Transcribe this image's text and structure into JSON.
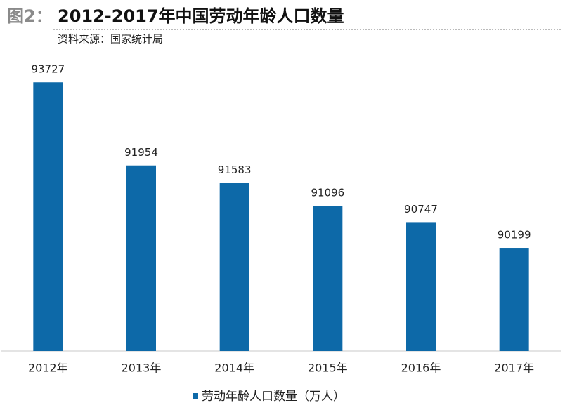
{
  "chart_data": {
    "type": "bar",
    "figure_label": "图2：",
    "title": "2012-2017年中国劳动年龄人口数量",
    "subtitle": "资料来源：国家统计局",
    "categories": [
      "2012年",
      "2013年",
      "2014年",
      "2015年",
      "2016年",
      "2017年"
    ],
    "series": [
      {
        "name": "劳动年龄人口数量（万人）",
        "color": "#0d69a8",
        "values": [
          93727,
          91954,
          91583,
          91096,
          90747,
          90199
        ]
      }
    ],
    "ylim": [
      88000,
      94000
    ],
    "legend": "bottom"
  }
}
